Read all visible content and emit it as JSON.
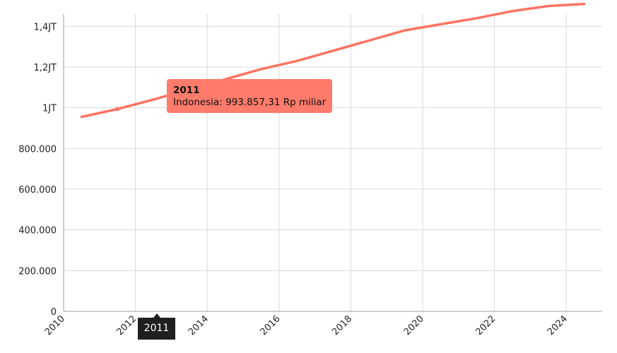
{
  "chart_data": {
    "type": "line",
    "x_axis": {
      "min": 2010,
      "max": 2025,
      "ticks": [
        2010,
        2012,
        2014,
        2016,
        2018,
        2020,
        2022,
        2024
      ],
      "tick_labels": [
        "2010",
        "2012",
        "2014",
        "2016",
        "2018",
        "2020",
        "2022",
        "2024"
      ]
    },
    "y_axis": {
      "min": 0,
      "max": 1460000,
      "ticks": [
        0,
        200000,
        400000,
        600000,
        800000,
        1000000,
        1200000,
        1400000
      ],
      "tick_labels": [
        "0",
        "200.000",
        "400.000",
        "600.000",
        "800.000",
        "1JT",
        "1,2JT",
        "1,4JT"
      ]
    },
    "grid": true,
    "series": [
      {
        "name": "Indonesia",
        "color": "#ff7262",
        "x": [
          2010.5,
          2011.5,
          2012.5,
          2013.5,
          2014.5,
          2015.5,
          2016.5,
          2017.5,
          2018.5,
          2019.5,
          2020.5,
          2021.5,
          2022.5,
          2023.5,
          2024.5
        ],
        "y": [
          955000,
          993857.31,
          1040000,
          1090000,
          1140000,
          1190000,
          1230000,
          1280000,
          1330000,
          1380000,
          1410000,
          1440000,
          1475000,
          1500000,
          1510000
        ]
      }
    ],
    "tooltip": {
      "year": "2011",
      "text": "Indonesia: 993.857,31 Rp miliar"
    },
    "crosshair_label": "2011"
  }
}
